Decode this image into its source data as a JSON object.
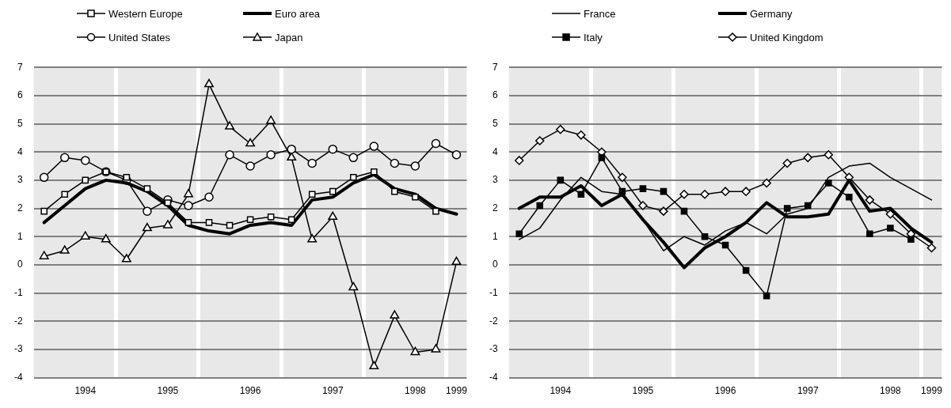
{
  "chart_data": [
    {
      "type": "line",
      "categories": [
        null,
        null,
        "1994",
        null,
        null,
        null,
        "1995",
        null,
        null,
        null,
        "1996",
        null,
        null,
        null,
        "1997",
        null,
        null,
        null,
        "1998",
        null,
        "1999"
      ],
      "ylim": [
        -4,
        7
      ],
      "yticks": [
        -4,
        -3,
        -2,
        -1,
        0,
        1,
        2,
        3,
        4,
        5,
        6,
        7
      ],
      "grid": true,
      "legend": "top",
      "line_style": "solid",
      "series": [
        {
          "name": "Western Europe",
          "color": "#000000",
          "marker": "square",
          "values": [
            1.9,
            2.5,
            3.0,
            3.3,
            3.1,
            2.7,
            2.2,
            1.5,
            1.5,
            1.4,
            1.6,
            1.7,
            1.6,
            2.5,
            2.6,
            3.1,
            3.3,
            2.6,
            2.4,
            1.9,
            null
          ]
        },
        {
          "name": "Euro area",
          "color": "#000000",
          "marker": "none",
          "values": [
            1.5,
            2.1,
            2.7,
            3.0,
            2.9,
            2.6,
            2.1,
            1.4,
            1.2,
            1.1,
            1.4,
            1.5,
            1.4,
            2.3,
            2.4,
            2.9,
            3.2,
            2.7,
            2.5,
            2.0,
            1.8
          ]
        },
        {
          "name": "United States",
          "color": "#000000",
          "marker": "circle",
          "values": [
            3.1,
            3.8,
            3.7,
            3.3,
            3.0,
            1.9,
            2.3,
            2.1,
            2.4,
            3.9,
            3.5,
            3.9,
            4.1,
            3.6,
            4.1,
            3.8,
            4.2,
            3.6,
            3.5,
            4.3,
            3.9
          ]
        },
        {
          "name": "Japan",
          "color": "#000000",
          "marker": "triangle",
          "values": [
            0.3,
            0.5,
            1.0,
            0.9,
            0.2,
            1.3,
            1.4,
            2.5,
            6.4,
            4.9,
            4.3,
            5.1,
            3.8,
            0.9,
            1.7,
            -0.8,
            -3.6,
            -1.8,
            -3.1,
            -3.0,
            0.1
          ]
        }
      ]
    },
    {
      "type": "line",
      "categories": [
        null,
        null,
        "1994",
        null,
        null,
        null,
        "1995",
        null,
        null,
        null,
        "1996",
        null,
        null,
        null,
        "1997",
        null,
        null,
        null,
        "1998",
        null,
        "1999"
      ],
      "ylim": [
        -4,
        7
      ],
      "yticks": [
        -4,
        -3,
        -2,
        -1,
        0,
        1,
        2,
        3,
        4,
        5,
        6,
        7
      ],
      "grid": true,
      "legend": "top",
      "line_style": "solid",
      "series": [
        {
          "name": "France",
          "color": "#000000",
          "marker": "none",
          "values": [
            0.9,
            1.3,
            2.3,
            3.1,
            2.6,
            2.5,
            1.6,
            0.5,
            1.0,
            0.7,
            1.2,
            1.5,
            1.1,
            1.8,
            2.0,
            3.1,
            3.5,
            3.6,
            3.1,
            2.7,
            2.3
          ]
        },
        {
          "name": "Germany",
          "color": "#000000",
          "marker": "none",
          "values": [
            2.0,
            2.4,
            2.4,
            2.8,
            2.1,
            2.5,
            1.6,
            0.8,
            -0.1,
            0.6,
            1.0,
            1.5,
            2.2,
            1.7,
            1.7,
            1.8,
            3.0,
            1.9,
            2.0,
            1.3,
            0.8
          ]
        },
        {
          "name": "Italy",
          "color": "#000000",
          "marker": "square",
          "values": [
            1.1,
            2.1,
            3.0,
            2.5,
            3.8,
            2.6,
            2.7,
            2.6,
            1.9,
            1.0,
            0.7,
            -0.2,
            -1.1,
            2.0,
            2.1,
            2.9,
            2.4,
            1.1,
            1.3,
            0.9,
            null
          ]
        },
        {
          "name": "United Kingdom",
          "color": "#000000",
          "marker": "diamond",
          "values": [
            3.7,
            4.4,
            4.8,
            4.6,
            4.0,
            3.1,
            2.1,
            1.9,
            2.5,
            2.5,
            2.6,
            2.6,
            2.9,
            3.6,
            3.8,
            3.9,
            3.1,
            2.3,
            1.8,
            1.1,
            0.6
          ]
        }
      ]
    }
  ]
}
